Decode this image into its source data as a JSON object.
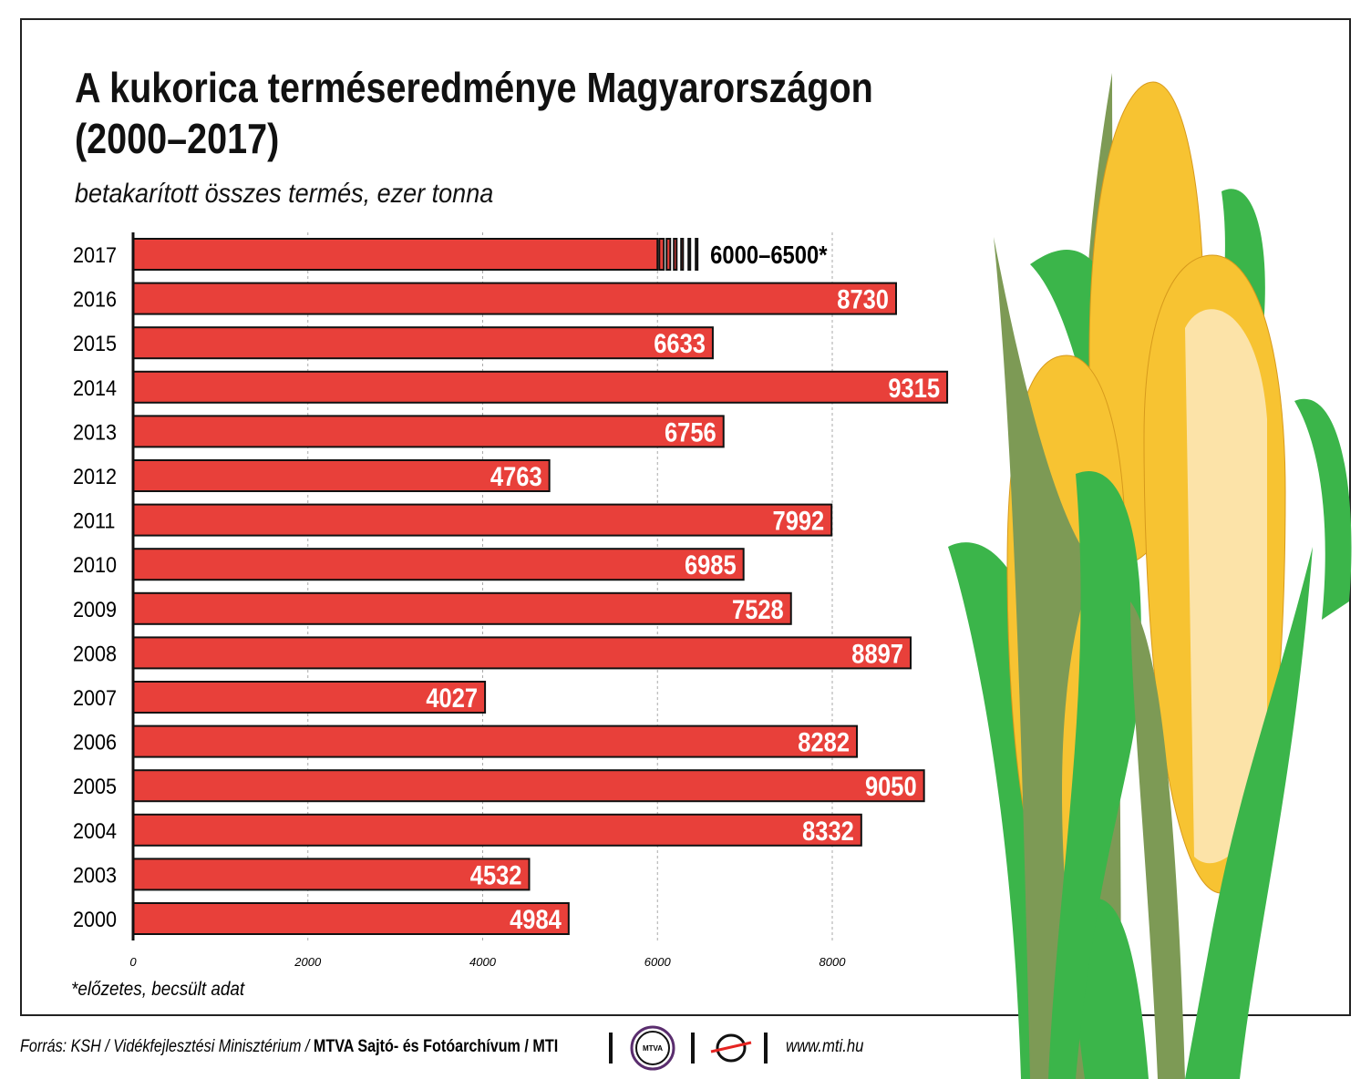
{
  "chart_data": {
    "type": "bar",
    "orientation": "horizontal",
    "title": "A kukorica terméseredménye Magyarországon (2000–2017)",
    "title_line1": "A kukorica terméseredménye Magyarországon",
    "title_line2": "(2000–2017)",
    "subtitle": "betakarított összes termés, ezer tonna",
    "categories": [
      "2017",
      "2016",
      "2015",
      "2014",
      "2013",
      "2012",
      "2011",
      "2010",
      "2009",
      "2008",
      "2007",
      "2006",
      "2005",
      "2004",
      "2003",
      "2000"
    ],
    "values": [
      6000,
      8730,
      6633,
      9315,
      6756,
      4763,
      7992,
      6985,
      7528,
      8897,
      4027,
      8282,
      9050,
      8332,
      4532,
      4984
    ],
    "value_labels": [
      "6000–6500*",
      "8730",
      "6633",
      "9315",
      "6756",
      "4763",
      "7992",
      "6985",
      "7528",
      "8897",
      "4027",
      "8282",
      "9050",
      "8332",
      "4532",
      "4984"
    ],
    "estimate_range": [
      6000,
      6500
    ],
    "xlim": [
      0,
      9500
    ],
    "xticks": [
      0,
      2000,
      4000,
      6000,
      8000
    ],
    "grid": true,
    "bar_color": "#e8403a",
    "footnote": "*előzetes, becsült adat"
  },
  "footer": {
    "source_prefix": "Forrás: KSH / Vidékfejlesztési Minisztérium / ",
    "source_bold": "MTVA Sajtó- és Fotóarchívum / MTI",
    "mtva_logo": "MTVA",
    "website": "www.mti.hu"
  }
}
